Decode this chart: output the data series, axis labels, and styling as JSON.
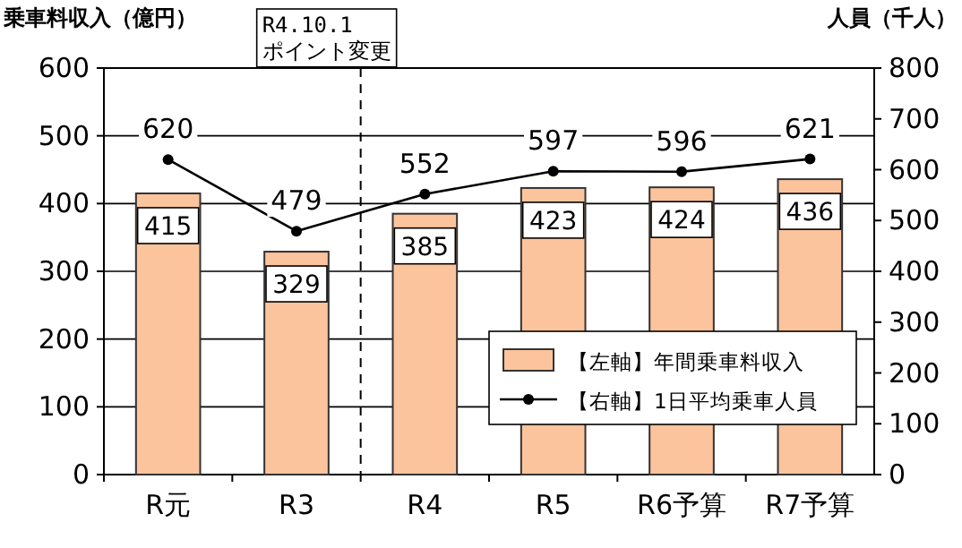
{
  "chart_data": {
    "type": "bar",
    "categories": [
      "R元",
      "R3",
      "R4",
      "R5",
      "R6予算",
      "R7予算"
    ],
    "ylabel": "乗車料収入（億円）",
    "y2label": "人員（千人）",
    "ylim": [
      0,
      600
    ],
    "yticks": [
      0,
      100,
      200,
      300,
      400,
      500,
      600
    ],
    "y2lim": [
      0,
      800
    ],
    "y2ticks": [
      0,
      100,
      200,
      300,
      400,
      500,
      600,
      700,
      800
    ],
    "grid": "y",
    "legend": "bottom right",
    "data_labels": true,
    "marker": "circle",
    "series": [
      {
        "name": "【左軸】年間乗車料収入",
        "color": "#fbc49c",
        "values": [
          415,
          329,
          385,
          423,
          424,
          436
        ]
      },
      {
        "name": "【右軸】1日平均乗車人員",
        "type": "line",
        "axis": "y2",
        "color": "#000000",
        "values": [
          620,
          479,
          552,
          597,
          596,
          621
        ]
      }
    ],
    "annotations": [
      "R4.10.1\nポイント変更"
    ]
  }
}
